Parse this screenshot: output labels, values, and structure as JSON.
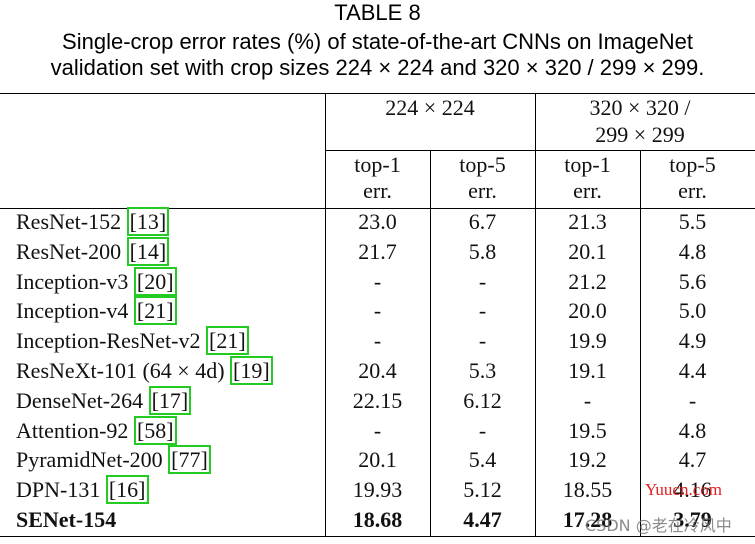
{
  "caption": {
    "label": "TABLE 8",
    "line1": "Single-crop error rates (%) of state-of-the-art CNNs on ImageNet",
    "line2": "validation set with crop sizes 224 × 224 and 320 × 320 / 299 × 299."
  },
  "table": {
    "groups": [
      "224 × 224",
      "320 × 320 /",
      "299 × 299"
    ],
    "subheaders": [
      [
        "top-1",
        "err."
      ],
      [
        "top-5",
        "err."
      ],
      [
        "top-1",
        "err."
      ],
      [
        "top-5",
        "err."
      ]
    ],
    "rows": [
      {
        "name": "ResNet-152 ",
        "cite": "[13]",
        "values": [
          "23.0",
          "6.7",
          "21.3",
          "5.5"
        ]
      },
      {
        "name": "ResNet-200 ",
        "cite": "[14]",
        "values": [
          "21.7",
          "5.8",
          "20.1",
          "4.8"
        ]
      },
      {
        "name": "Inception-v3 ",
        "cite": "[20]",
        "values": [
          "-",
          "-",
          "21.2",
          "5.6"
        ]
      },
      {
        "name": "Inception-v4 ",
        "cite": "[21]",
        "values": [
          "-",
          "-",
          "20.0",
          "5.0"
        ]
      },
      {
        "name": "Inception-ResNet-v2 ",
        "cite": "[21]",
        "values": [
          "-",
          "-",
          "19.9",
          "4.9"
        ]
      },
      {
        "name": "ResNeXt-101 (64 × 4d) ",
        "cite": "[19]",
        "values": [
          "20.4",
          "5.3",
          "19.1",
          "4.4"
        ]
      },
      {
        "name": "DenseNet-264 ",
        "cite": "[17]",
        "values": [
          "22.15",
          "6.12",
          "-",
          "-"
        ]
      },
      {
        "name": "Attention-92 ",
        "cite": "[58]",
        "values": [
          "-",
          "-",
          "19.5",
          "4.8"
        ]
      },
      {
        "name": "PyramidNet-200 ",
        "cite": "[77]",
        "values": [
          "20.1",
          "5.4",
          "19.2",
          "4.7"
        ]
      },
      {
        "name": "DPN-131 ",
        "cite": "[16]",
        "values": [
          "19.93",
          "5.12",
          "18.55",
          "4.16"
        ]
      },
      {
        "name": "SENet-154",
        "values": [
          "18.68",
          "4.47",
          "17.28",
          "3.79"
        ]
      }
    ]
  },
  "watermarks": {
    "site": "Yuucn.com",
    "csdn": "CSDN @老在冷风中"
  }
}
